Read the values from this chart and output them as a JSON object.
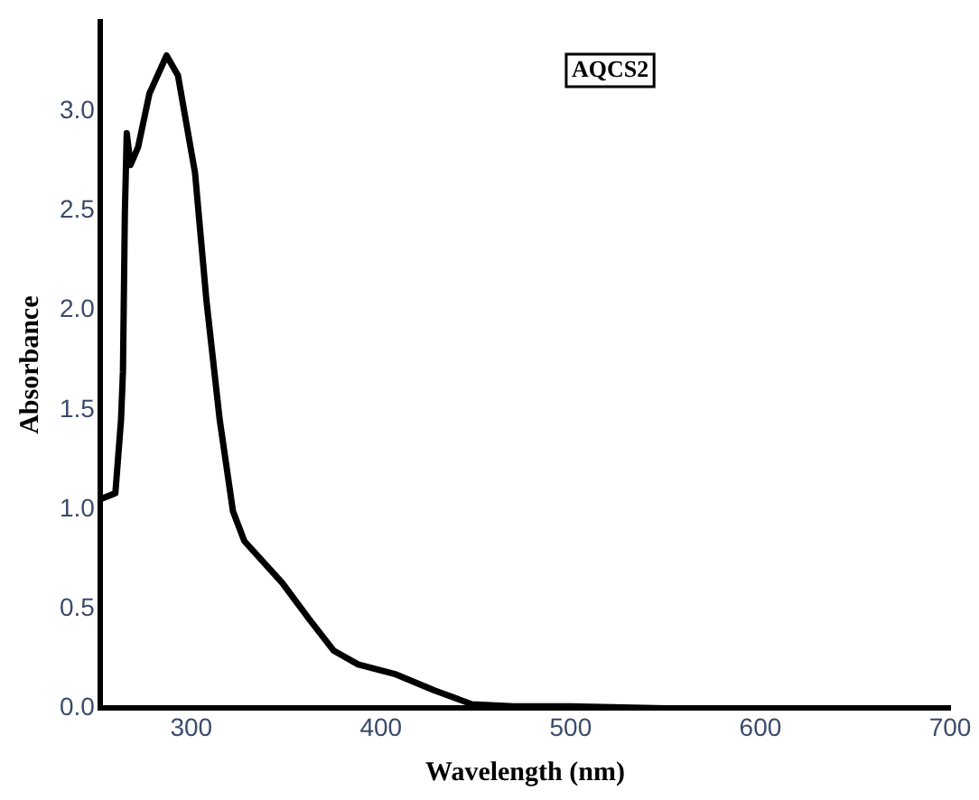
{
  "chart_data": {
    "type": "line",
    "xlabel": "Wavelength (nm)",
    "ylabel": "Absorbance",
    "annotations": [
      "AQCS2"
    ],
    "xlim": [
      252,
      700
    ],
    "ylim": [
      0,
      3.45
    ],
    "xticks": [
      300,
      400,
      500,
      600,
      700
    ],
    "yticks": [
      {
        "value": 0,
        "label": "0.0"
      },
      {
        "value": 0.5,
        "label": "0.5"
      },
      {
        "value": 1,
        "label": "1.0"
      },
      {
        "value": 1.5,
        "label": "1.5"
      },
      {
        "value": 2,
        "label": "2.0"
      },
      {
        "value": 2.5,
        "label": "2.5"
      },
      {
        "value": 3,
        "label": "3.0"
      }
    ],
    "grid": false,
    "legend": false,
    "marker": "none",
    "line_style": "solid",
    "series": [
      {
        "color": "#000000",
        "x": [
          252,
          260,
          263,
          264,
          265,
          266,
          268,
          272,
          278,
          287,
          293,
          302,
          308,
          315,
          322,
          328,
          348,
          362,
          375,
          388,
          408,
          428,
          448,
          470,
          500,
          550,
          600,
          650,
          700
        ],
        "values": [
          1.05,
          1.08,
          1.45,
          1.69,
          2.48,
          2.89,
          2.73,
          2.82,
          3.09,
          3.28,
          3.18,
          2.69,
          2.05,
          1.45,
          0.99,
          0.84,
          0.63,
          0.45,
          0.29,
          0.22,
          0.17,
          0.09,
          0.02,
          0.01,
          0.01,
          0,
          0,
          0,
          0
        ]
      }
    ]
  }
}
